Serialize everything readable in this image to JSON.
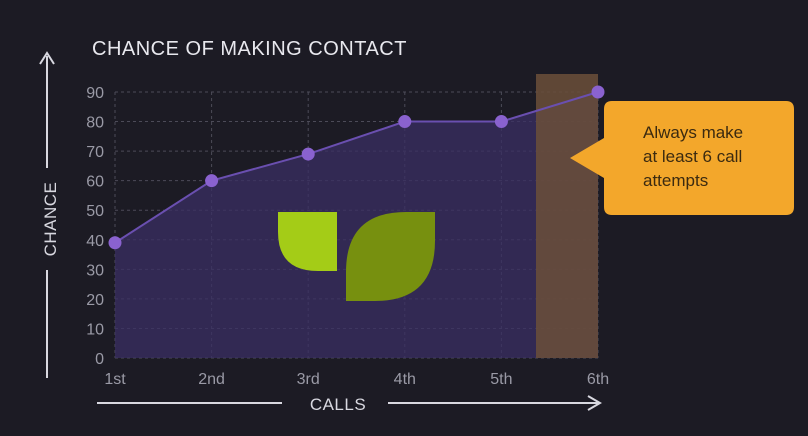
{
  "chart_data": {
    "type": "area",
    "title": "CHANCE OF MAKING CONTACT",
    "xlabel": "CALLS",
    "ylabel": "CHANCE",
    "categories": [
      "1st",
      "2nd",
      "3rd",
      "4th",
      "5th",
      "6th"
    ],
    "values": [
      39,
      60,
      69,
      80,
      80,
      90
    ],
    "yticks": [
      0,
      10,
      20,
      30,
      40,
      50,
      60,
      70,
      80,
      90
    ],
    "ylim": [
      0,
      90
    ],
    "grid": true,
    "highlight_category": "6th",
    "annotation": {
      "lines": [
        "Always make",
        "at least 6 call",
        "attempts"
      ]
    },
    "colors": {
      "background": "#1c1b24",
      "area": "#3a2f63",
      "line": "#6a4fb0",
      "point": "#8a62cf",
      "highlight": "#6b4f3a",
      "callout": "#f3a72b",
      "logo_light": "#a4cc17",
      "logo_dark": "#77900f"
    }
  }
}
